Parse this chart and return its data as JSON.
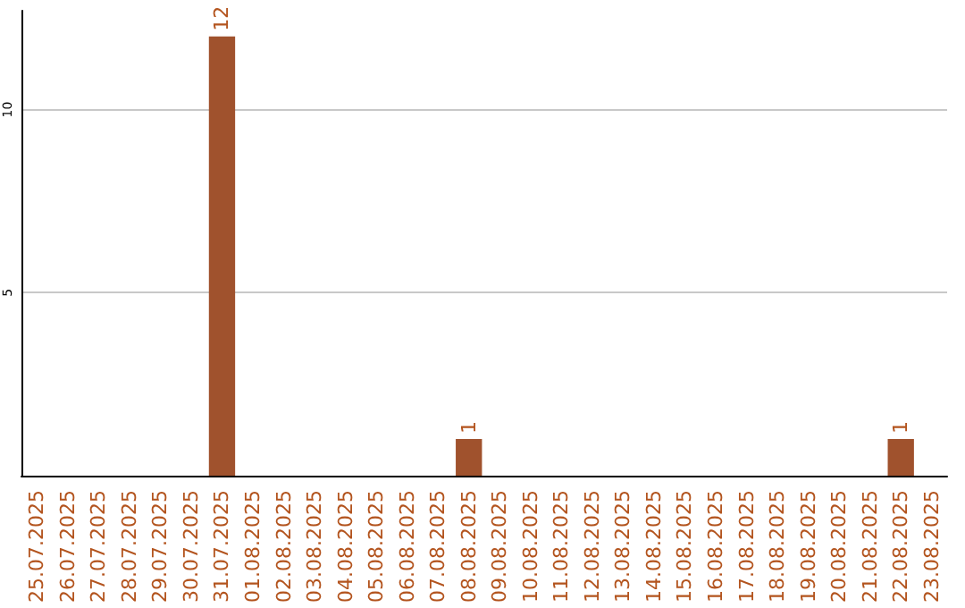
{
  "chart_data": {
    "type": "bar",
    "categories": [
      "25.07.2025",
      "26.07.2025",
      "27.07.2025",
      "28.07.2025",
      "29.07.2025",
      "30.07.2025",
      "31.07.2025",
      "01.08.2025",
      "02.08.2025",
      "03.08.2025",
      "04.08.2025",
      "05.08.2025",
      "06.08.2025",
      "07.08.2025",
      "08.08.2025",
      "09.08.2025",
      "10.08.2025",
      "11.08.2025",
      "12.08.2025",
      "13.08.2025",
      "14.08.2025",
      "15.08.2025",
      "16.08.2025",
      "17.08.2025",
      "18.08.2025",
      "19.08.2025",
      "20.08.2025",
      "21.08.2025",
      "22.08.2025",
      "23.08.2025"
    ],
    "values": [
      null,
      null,
      null,
      null,
      null,
      null,
      12,
      null,
      null,
      null,
      null,
      null,
      null,
      null,
      1,
      null,
      null,
      null,
      null,
      null,
      null,
      null,
      null,
      null,
      null,
      null,
      null,
      null,
      1,
      null
    ],
    "color": "#a0522d",
    "ylim": [
      0,
      12.7
    ],
    "yticks": [
      5,
      10
    ],
    "grid": "y",
    "data_labels": true
  }
}
